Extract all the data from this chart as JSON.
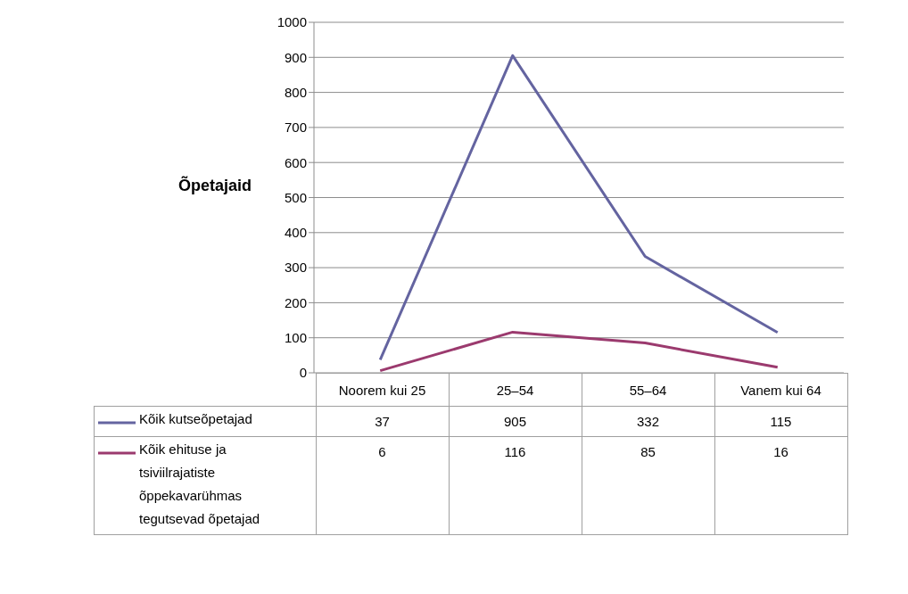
{
  "chart_data": {
    "type": "line",
    "ylabel": "Õpetajaid",
    "categories": [
      "Noorem kui 25",
      "25–54",
      "55–64",
      "Vanem kui 64"
    ],
    "series": [
      {
        "name": "Kõik kutseõpetajad",
        "color": "#6464a0",
        "values": [
          37,
          905,
          332,
          115
        ]
      },
      {
        "name": "Kõik ehituse ja tsiviilrajatiste õppekavarühmas tegutsevad õpetajad",
        "color": "#9b3a6e",
        "values": [
          6,
          116,
          85,
          16
        ]
      }
    ],
    "ylim": [
      0,
      1000
    ],
    "yticks": [
      0,
      100,
      200,
      300,
      400,
      500,
      600,
      700,
      800,
      900,
      1000
    ],
    "grid": "y",
    "legend": "bottom",
    "data_labels": true,
    "marker": "none",
    "line_style": "solid"
  }
}
